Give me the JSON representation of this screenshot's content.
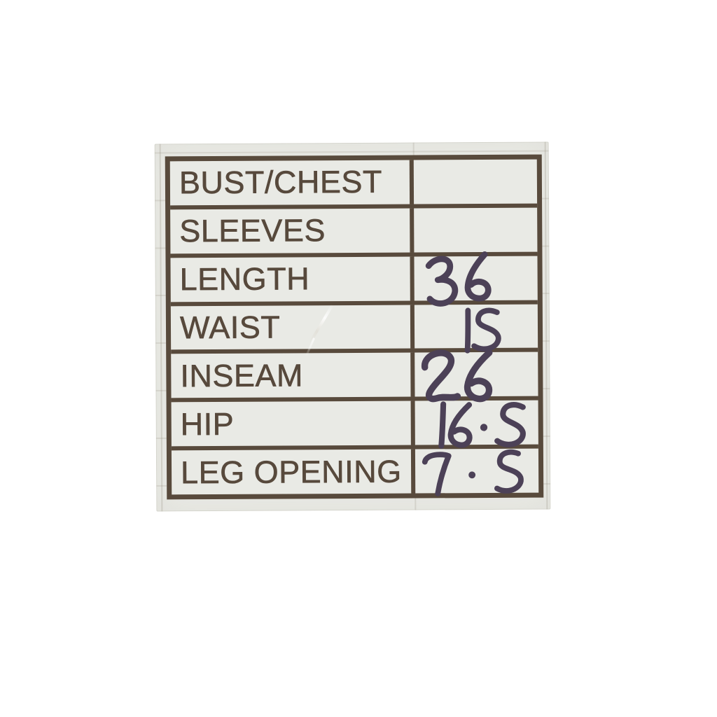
{
  "page": {
    "background_color": "#ffffff",
    "description": "Photo of a clothing measurement sticker label"
  },
  "sticker": {
    "paper_color": "#e9eae5",
    "grid_color": "#584a3c",
    "print_color": "#57493c",
    "ink_color": "#4c4157",
    "rows": [
      {
        "label": "BUST/CHEST",
        "value": ""
      },
      {
        "label": "SLEEVES",
        "value": ""
      },
      {
        "label": "LENGTH",
        "value": "36"
      },
      {
        "label": "WAIST",
        "value": "15"
      },
      {
        "label": "INSEAM",
        "value": "26"
      },
      {
        "label": "HIP",
        "value": "16.5"
      },
      {
        "label": "LEG OPENING",
        "value": "7.5"
      }
    ]
  }
}
